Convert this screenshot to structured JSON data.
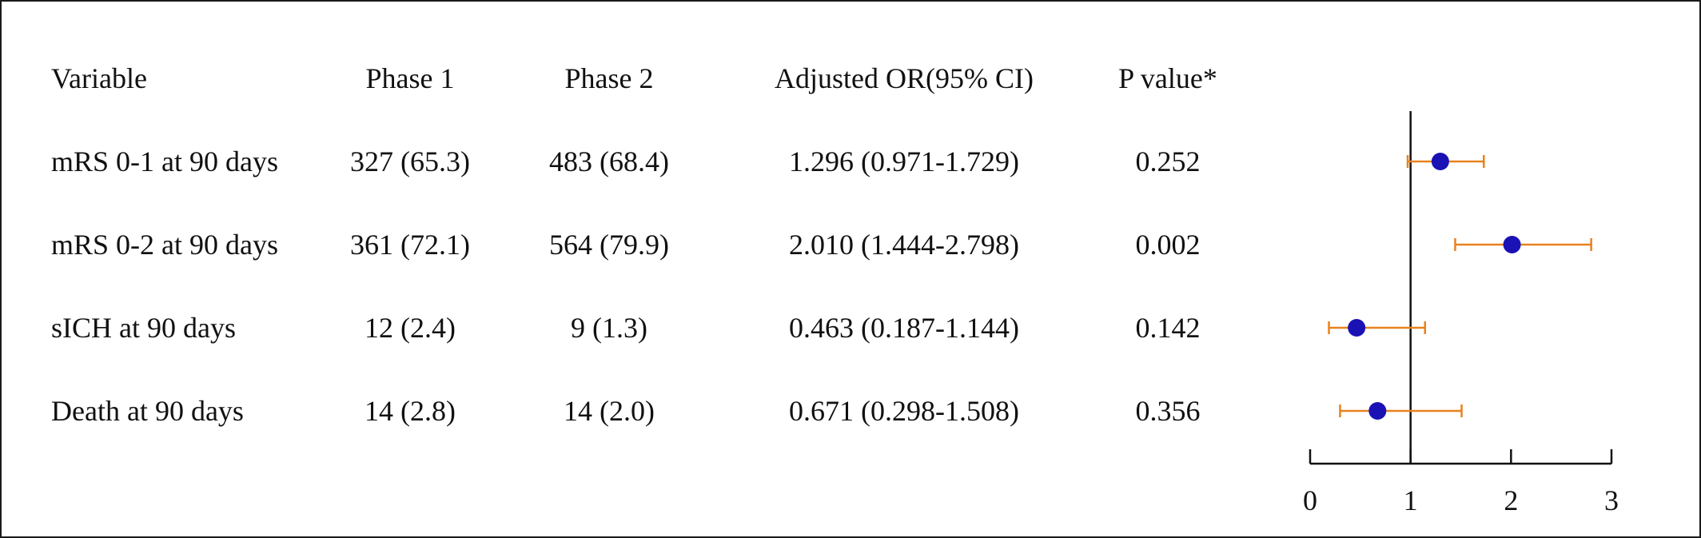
{
  "chart_data": {
    "type": "forest",
    "columns": [
      "Variable",
      "Phase 1",
      "Phase 2",
      "Adjusted OR(95% CI)",
      "P value*"
    ],
    "rows": [
      {
        "variable": "mRS 0-1 at 90 days",
        "phase1": "327 (65.3)",
        "phase2": "483 (68.4)",
        "or_ci": "1.296 (0.971-1.729)",
        "p": "0.252",
        "or": 1.296,
        "lo": 0.971,
        "hi": 1.729
      },
      {
        "variable": "mRS 0-2 at 90 days",
        "phase1": "361 (72.1)",
        "phase2": "564 (79.9)",
        "or_ci": "2.010 (1.444-2.798)",
        "p": "0.002",
        "or": 2.01,
        "lo": 1.444,
        "hi": 2.798
      },
      {
        "variable": "sICH at 90 days",
        "phase1": "12 (2.4)",
        "phase2": "9 (1.3)",
        "or_ci": "0.463 (0.187-1.144)",
        "p": "0.142",
        "or": 0.463,
        "lo": 0.187,
        "hi": 1.144
      },
      {
        "variable": "Death at 90 days",
        "phase1": "14 (2.8)",
        "phase2": "14 (2.0)",
        "or_ci": "0.671 (0.298-1.508)",
        "p": "0.356",
        "or": 0.671,
        "lo": 0.298,
        "hi": 1.508
      }
    ],
    "xlim": [
      0,
      3
    ],
    "x_ticks": [
      "0",
      "1",
      "2",
      "3"
    ],
    "reference_line": 1,
    "point_color": "#1a12b5",
    "ci_color": "#e8821e",
    "axis_color": "#111111"
  }
}
